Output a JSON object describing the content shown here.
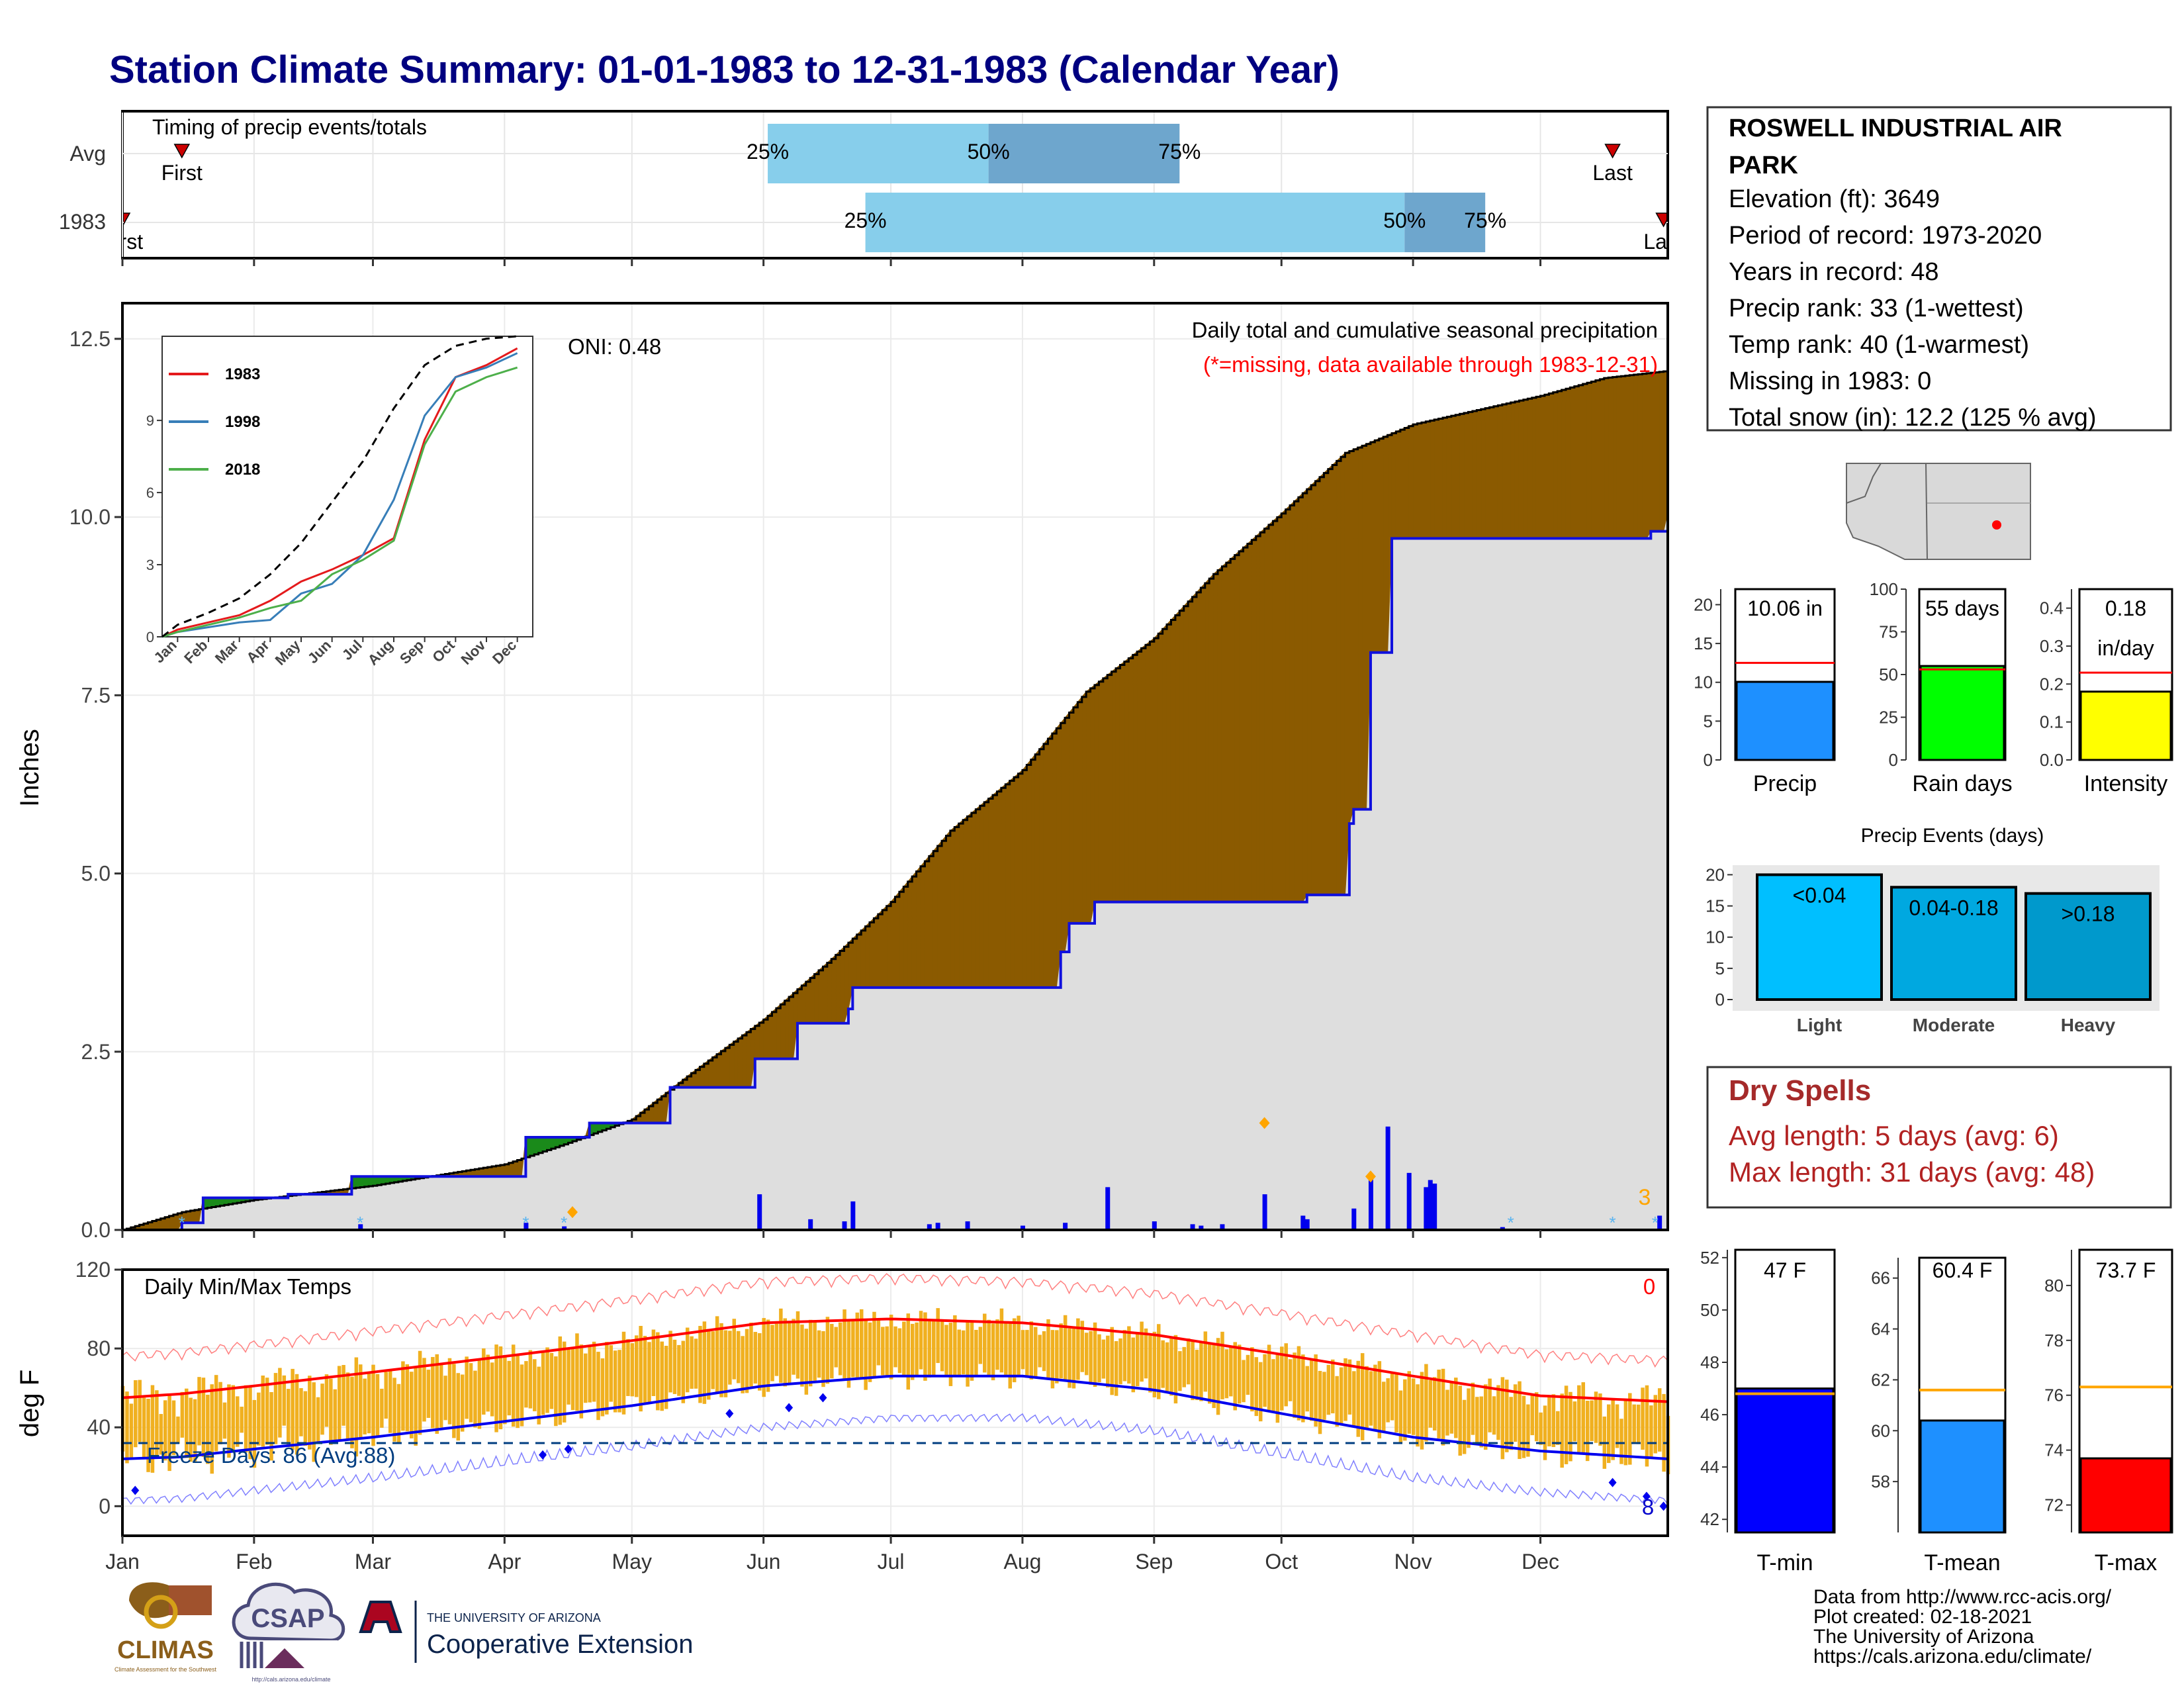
{
  "title": "Station Climate Summary: 01-01-1983 to 12-31-1983 (Calendar Year)",
  "station": {
    "name_line1": "ROSWELL INDUSTRIAL AIR",
    "name_line2": "PARK",
    "elevation": "Elevation (ft): 3649",
    "period": "Period of record: 1973-2020",
    "years": "Years in record: 48",
    "precip_rank": "Precip rank: 33 (1-wettest)",
    "temp_rank": "Temp rank: 40 (1-warmest)",
    "missing": "Missing in 1983: 0",
    "snow": "Total snow (in): 12.2 (125 % avg)"
  },
  "months": [
    "Jan",
    "Feb",
    "Mar",
    "Apr",
    "May",
    "Jun",
    "Jul",
    "Aug",
    "Sep",
    "Oct",
    "Nov",
    "Dec"
  ],
  "timing": {
    "title": "Timing of precip events/totals",
    "rows": [
      "Avg",
      "1983"
    ],
    "first": "First",
    "last": "Last",
    "avg": {
      "first_doy": 15,
      "last_doy": 352,
      "p25": 153,
      "p50": 205,
      "p75": 250
    },
    "y1983": {
      "first_doy": 1,
      "last_doy": 364,
      "p25": 176,
      "p50": 303,
      "p75": 322
    },
    "p25": "25%",
    "p50": "50%",
    "p75": "75%",
    "colors": {
      "light": "#87ceeb",
      "dark": "#6ea6cd",
      "marker": "#cc0000"
    }
  },
  "chart_data": [
    {
      "type": "area",
      "title": "Daily total and cumulative seasonal precipitation",
      "subtitle": "(*=missing, data available through 1983-12-31)",
      "ylabel": "Inches",
      "ylim": [
        0,
        13
      ],
      "yticks": [
        "0.0",
        "2.5",
        "5.0",
        "7.5",
        "10.0",
        "12.5"
      ],
      "oni": "ONI: 0.48",
      "annotation_count": "3",
      "series": [
        {
          "name": "avg_cumulative",
          "color": "#8b5a00",
          "x": [
            1,
            15,
            32,
            60,
            91,
            105,
            121,
            135,
            152,
            168,
            182,
            196,
            213,
            228,
            244,
            258,
            274,
            289,
            305,
            320,
            335,
            350,
            365
          ],
          "values": [
            0.0,
            0.25,
            0.42,
            0.62,
            0.92,
            1.2,
            1.55,
            2.2,
            2.95,
            3.8,
            4.6,
            5.6,
            6.45,
            7.55,
            8.3,
            9.2,
            10.05,
            10.9,
            11.3,
            11.5,
            11.7,
            11.95,
            12.05
          ]
        },
        {
          "name": "cumulative_1983",
          "color": "#1010dd",
          "x": [
            1,
            15,
            20,
            40,
            55,
            95,
            96,
            105,
            111,
            112,
            130,
            150,
            160,
            172,
            173,
            200,
            222,
            224,
            230,
            280,
            290,
            290.5,
            295,
            298,
            300,
            305,
            361,
            365
          ],
          "values": [
            0.0,
            0.1,
            0.45,
            0.5,
            0.75,
            0.75,
            1.3,
            1.3,
            1.5,
            1.5,
            2.0,
            2.4,
            2.9,
            3.1,
            3.4,
            3.4,
            3.9,
            4.3,
            4.6,
            4.7,
            5.7,
            5.9,
            8.1,
            8.1,
            9.7,
            9.7,
            9.8,
            10.06
          ]
        },
        {
          "name": "daily_1983",
          "x": [
            57,
            96,
            105,
            151,
            163,
            171,
            173,
            191,
            193,
            200,
            213,
            223,
            233,
            244,
            253,
            255,
            260,
            270,
            279,
            280,
            291,
            295,
            299,
            304,
            308,
            309,
            310,
            326,
            363
          ],
          "values": [
            0.08,
            0.1,
            0.05,
            0.5,
            0.15,
            0.12,
            0.4,
            0.08,
            0.1,
            0.12,
            0.06,
            0.1,
            0.6,
            0.12,
            0.08,
            0.06,
            0.08,
            0.5,
            0.2,
            0.15,
            0.3,
            0.75,
            1.45,
            0.8,
            0.6,
            0.7,
            0.65,
            0.04,
            0.2
          ]
        }
      ]
    },
    {
      "type": "line",
      "title": "",
      "categories": [
        "Jan",
        "Feb",
        "Mar",
        "Apr",
        "May",
        "Jun",
        "Jul",
        "Aug",
        "Sep",
        "Oct",
        "Nov",
        "Dec"
      ],
      "ylim": [
        0,
        12.5
      ],
      "yticks": [
        "0",
        "3",
        "6",
        "9"
      ],
      "series": [
        {
          "name": "1983",
          "color": "#e41a1c",
          "values": [
            0.3,
            0.6,
            0.9,
            1.5,
            2.3,
            2.8,
            3.4,
            4.1,
            8.2,
            10.8,
            11.3,
            12.0
          ]
        },
        {
          "name": "1998",
          "color": "#377eb8",
          "values": [
            0.2,
            0.4,
            0.6,
            0.7,
            1.8,
            2.2,
            3.4,
            5.7,
            9.2,
            10.8,
            11.2,
            11.8
          ]
        },
        {
          "name": "2018",
          "color": "#4daf4a",
          "values": [
            0.2,
            0.5,
            0.8,
            1.2,
            1.5,
            2.6,
            3.2,
            4.0,
            8.0,
            10.2,
            10.8,
            11.2
          ]
        },
        {
          "name": "avg",
          "color": "#000000",
          "values": [
            0.5,
            1.0,
            1.6,
            2.6,
            3.9,
            5.6,
            7.3,
            9.5,
            11.3,
            12.1,
            12.4,
            12.5
          ]
        }
      ]
    },
    {
      "type": "bar",
      "title": "Daily Min/Max Temps",
      "ylabel": "deg F",
      "ylim": [
        -15,
        120
      ],
      "yticks": [
        "0",
        "40",
        "80",
        "120"
      ],
      "freeze_label": "Freeze Days: 86 (Avg:88)",
      "freeze_line": 32,
      "count_above": "0",
      "count_below": "8",
      "normals": {
        "doy": [
          1,
          15,
          32,
          60,
          91,
          121,
          152,
          182,
          213,
          244,
          274,
          305,
          335,
          365
        ],
        "max_avg": [
          55,
          57,
          61,
          68,
          76,
          84,
          93,
          95,
          93,
          87,
          77,
          66,
          56,
          53
        ],
        "min_avg": [
          24,
          25,
          29,
          35,
          43,
          51,
          61,
          66,
          66,
          59,
          47,
          35,
          28,
          24
        ]
      }
    },
    {
      "type": "bar",
      "title": "",
      "categories": [
        "Precip",
        "Rain days",
        "Intensity"
      ],
      "values": [
        10.06,
        55,
        0.18
      ],
      "avg": [
        12.5,
        53,
        0.23
      ],
      "labels": [
        "10.06 in",
        "55 days",
        "0.18"
      ],
      "unit_label": "in/day",
      "ylims": [
        [
          0,
          22
        ],
        [
          0,
          100
        ],
        [
          0,
          0.45
        ]
      ],
      "yticks": [
        [
          "0",
          "5",
          "10",
          "15",
          "20"
        ],
        [
          "0",
          "25",
          "50",
          "75",
          "100"
        ],
        [
          "0.0",
          "0.1",
          "0.2",
          "0.3",
          "0.4"
        ]
      ],
      "colors": [
        "#1e90ff",
        "#00ff00",
        "#ffff00"
      ]
    },
    {
      "type": "bar",
      "title": "Precip Events (days)",
      "categories": [
        "Light",
        "Moderate",
        "Heavy"
      ],
      "values": [
        20,
        18,
        17
      ],
      "labels": [
        "<0.04",
        "0.04-0.18",
        ">0.18"
      ],
      "ylim": [
        0,
        21
      ],
      "yticks": [
        "0",
        "5",
        "10",
        "15",
        "20"
      ],
      "colors": [
        "#00bfff",
        "#00a8e0",
        "#0099cc"
      ]
    },
    {
      "type": "bar",
      "title": "",
      "categories": [
        "T-min",
        "T-mean",
        "T-max"
      ],
      "values": [
        47,
        60.4,
        73.7
      ],
      "avg": [
        46.8,
        61.6,
        76.3
      ],
      "labels": [
        "47 F",
        "60.4 F",
        "73.7 F"
      ],
      "ylims": [
        [
          41.5,
          52.3
        ],
        [
          56,
          66.8
        ],
        [
          71,
          81.3
        ]
      ],
      "yticks": [
        [
          "42",
          "44",
          "46",
          "48",
          "50",
          "52"
        ],
        [
          "58",
          "60",
          "62",
          "64",
          "66"
        ],
        [
          "72",
          "74",
          "76",
          "78",
          "80"
        ]
      ],
      "colors": [
        "#0000ff",
        "#1e90ff",
        "#ff0000"
      ]
    }
  ],
  "dry_spells": {
    "title": "Dry Spells",
    "avg_length": "Avg length: 5 days (avg: 6)",
    "max_length": "Max length: 31 days (avg: 48)"
  },
  "footer": {
    "line1": "Data from http://www.rcc-acis.org/",
    "line2": "Plot created: 02-18-2021",
    "line3": "The University of Arizona",
    "line4": "https://cals.arizona.edu/climate/"
  },
  "logos": {
    "climas": "CLIMAS",
    "climas_sub": "Climate Assessment for the Southwest",
    "csap": "CSAP",
    "csap_url": "http://cals.arizona.edu/climate",
    "ua_small": "THE UNIVERSITY OF ARIZONA",
    "ua_big": "Cooperative Extension"
  }
}
